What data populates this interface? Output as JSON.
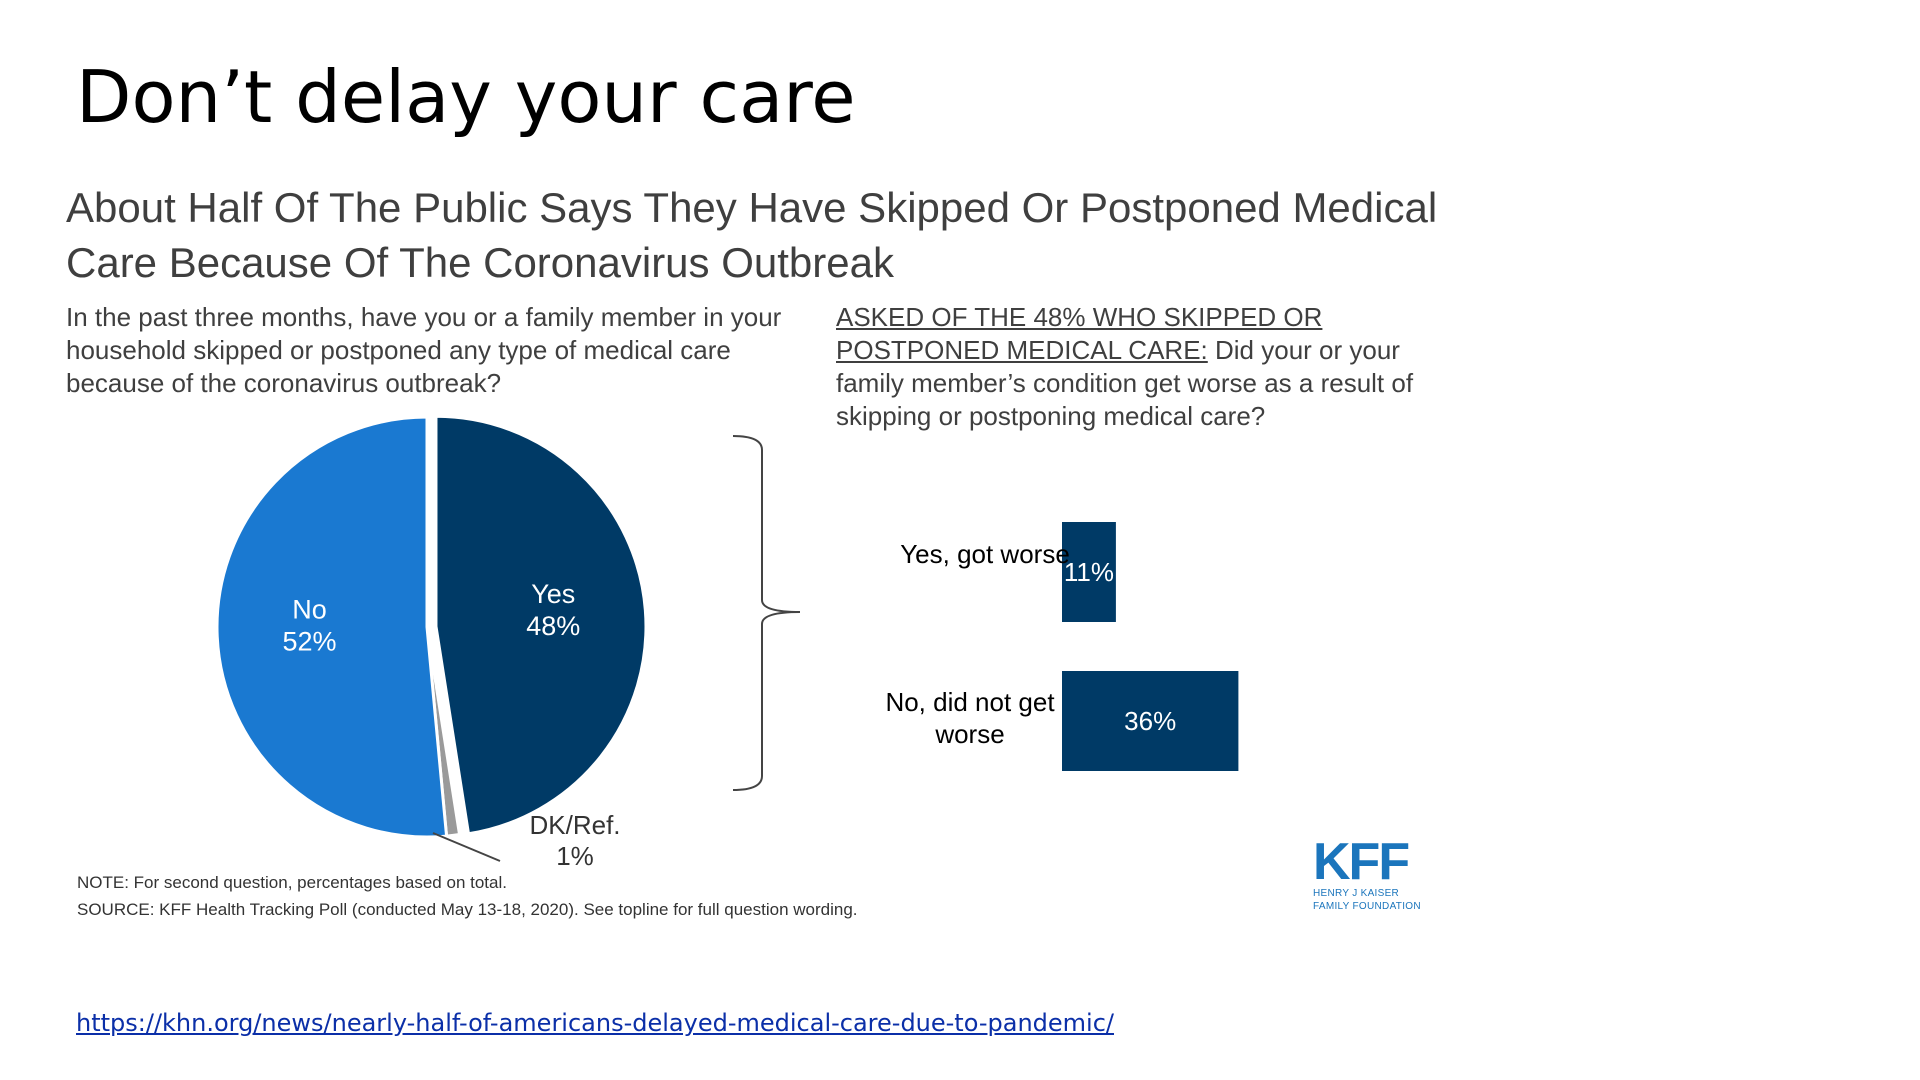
{
  "slide": {
    "title": "Don’t delay your care",
    "link": "https://khn.org/news/nearly-half-of-americans-delayed-medical-care-due-to-pandemic/"
  },
  "chart": {
    "title": "About Half Of The Public Says They Have Skipped Or Postponed Medical Care Because Of The Coronavirus Outbreak",
    "question1": "In the past three months, have you or a family member in your household skipped or postponed any type of medical care because of the coronavirus outbreak?",
    "question2_prefix": "ASKED OF THE 48% WHO SKIPPED OR POSTPONED MEDICAL CARE:",
    "question2": " Did your or your family member’s condition get worse as a result of skipping or postponing medical care?",
    "note": "NOTE: For second question, percentages based on total.",
    "source": "SOURCE: KFF Health Tracking Poll (conducted May 13-18, 2020). See topline for full question wording.",
    "logo": "KFF",
    "logo_sub_1": "HENRY J KAISER",
    "logo_sub_2": "FAMILY FOUNDATION"
  },
  "colors": {
    "yes": "#003a66",
    "no": "#1a79d1",
    "dk_ref": "#9a9a9a",
    "bar": "#003a66",
    "brand": "#1b75bc"
  },
  "chart_data": [
    {
      "type": "pie",
      "slices": [
        {
          "label": "Yes",
          "value": 48,
          "value_label": "48%",
          "color": "#003a66"
        },
        {
          "label": "DK/Ref.",
          "value": 1,
          "value_label": "1%",
          "color": "#9a9a9a"
        },
        {
          "label": "No",
          "value": 52,
          "value_label": "52%",
          "color": "#1a79d1"
        }
      ]
    },
    {
      "type": "bar",
      "orientation": "horizontal",
      "categories": [
        "Yes, got worse",
        "No, did not get worse"
      ],
      "values": [
        11,
        36
      ],
      "value_labels": [
        "11%",
        "36%"
      ],
      "color": "#003a66"
    }
  ]
}
